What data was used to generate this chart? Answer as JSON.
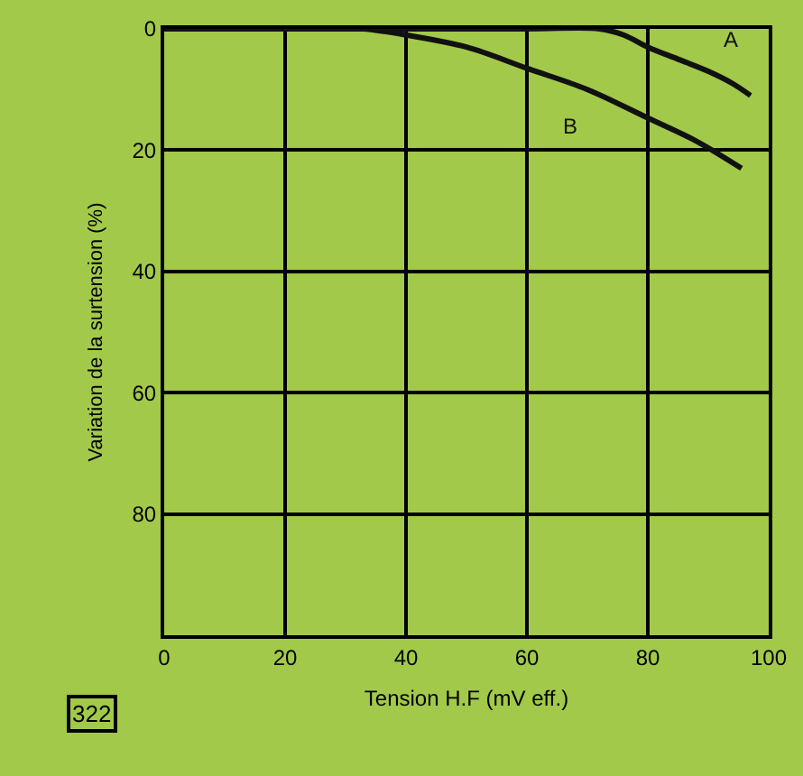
{
  "chart_data": {
    "type": "line",
    "xlabel": "Tension H.F (mV eff.)",
    "ylabel": "Variation de la surtension (%)",
    "xlim": [
      0,
      100
    ],
    "xticks": [
      0,
      20,
      40,
      60,
      80,
      100
    ],
    "ylim": [
      100,
      0
    ],
    "yticks": [
      0,
      20,
      40,
      60,
      80,
      {
        "value": 100,
        "label": null
      }
    ],
    "grid": true,
    "legend": false,
    "marker": "none",
    "line_style": "solid",
    "series": [
      {
        "name": "A",
        "color": "#111111",
        "x": [
          0,
          60,
          72,
          76,
          80,
          85,
          90,
          94,
          97
        ],
        "values": [
          0,
          0,
          0,
          1,
          3,
          5,
          7,
          9,
          11
        ]
      },
      {
        "name": "B",
        "color": "#111111",
        "x": [
          0,
          30,
          33,
          40,
          50,
          60,
          70,
          80,
          88,
          95.5
        ],
        "values": [
          0,
          0,
          0,
          1,
          3,
          6.5,
          10,
          14.7,
          18.5,
          23
        ]
      }
    ],
    "annotations": [
      "322"
    ]
  }
}
